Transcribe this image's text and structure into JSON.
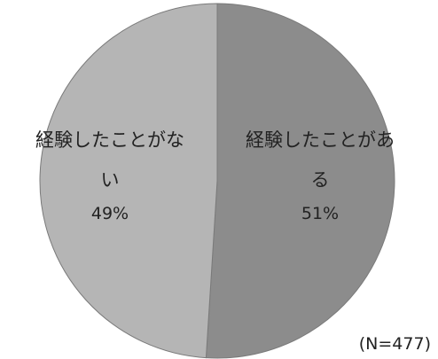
{
  "chart_data": {
    "type": "pie",
    "slices": [
      {
        "label_lines": [
          "経験したことがあ",
          "る"
        ],
        "value": 51,
        "value_label": "51%",
        "color": "#8c8c8c"
      },
      {
        "label_lines": [
          "経験したことがな",
          "い"
        ],
        "value": 49,
        "value_label": "49%",
        "color": "#b5b5b5"
      }
    ],
    "note": "(N=477)",
    "start": "12 o'clock",
    "direction": "clockwise"
  }
}
